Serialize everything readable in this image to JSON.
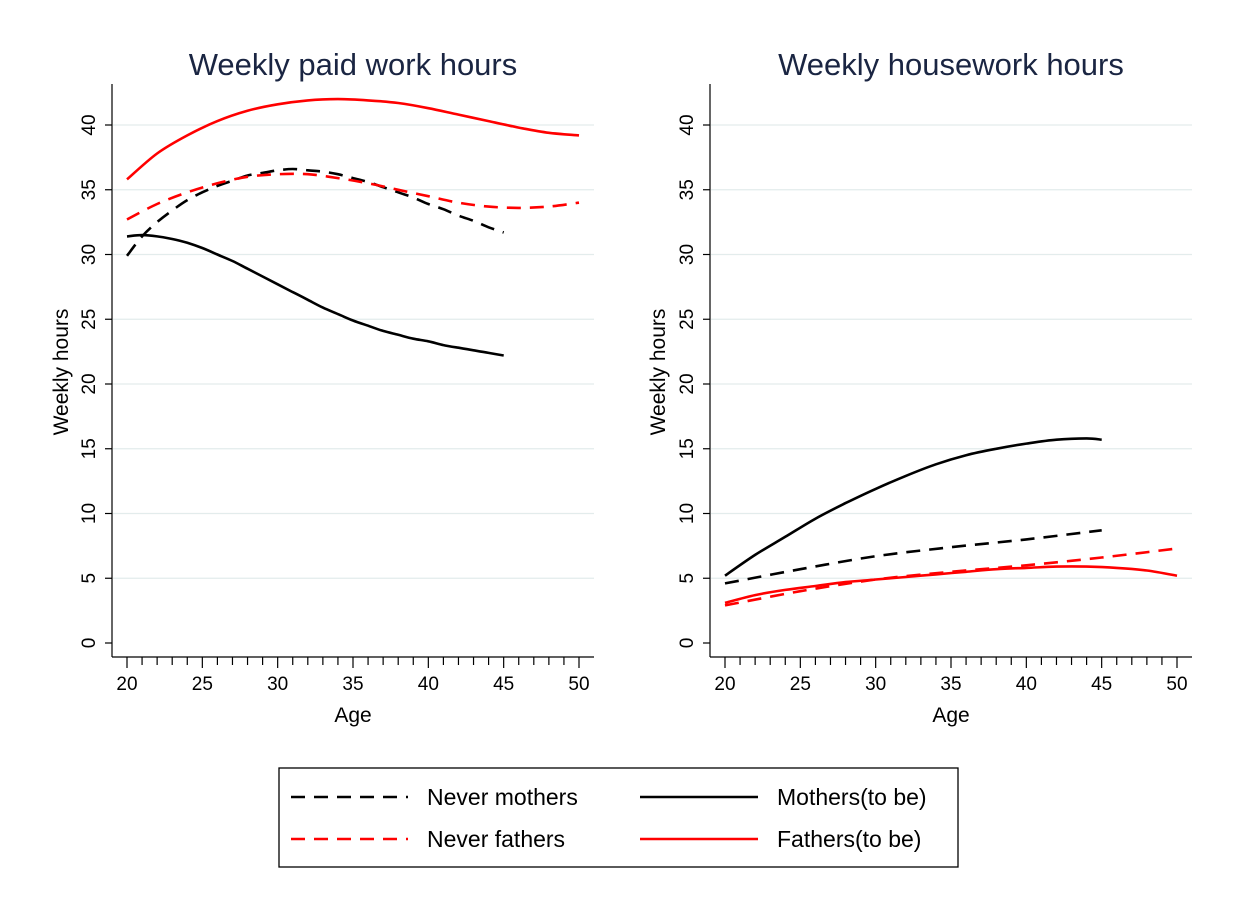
{
  "chart_data": [
    {
      "type": "line",
      "title": "Weekly paid work hours",
      "xlabel": "Age",
      "ylabel": "Weekly hours",
      "xlim": [
        20,
        50
      ],
      "ylim": [
        0,
        40
      ],
      "xticks": [
        20,
        25,
        30,
        35,
        40,
        45,
        50
      ],
      "yticks": [
        0,
        5,
        10,
        15,
        20,
        25,
        30,
        35,
        40
      ],
      "grid": "horizontal",
      "series": [
        {
          "name": "Never mothers",
          "color": "#000000",
          "style": "dashed",
          "x": [
            20,
            21,
            22,
            23,
            24,
            25,
            26,
            27,
            28,
            29,
            30,
            31,
            32,
            33,
            34,
            35,
            36,
            37,
            38,
            39,
            40,
            41,
            42,
            43,
            44,
            45
          ],
          "y": [
            29.9,
            31.4,
            32.5,
            33.4,
            34.2,
            34.8,
            35.3,
            35.7,
            36.1,
            36.3,
            36.5,
            36.6,
            36.5,
            36.4,
            36.2,
            35.9,
            35.6,
            35.2,
            34.8,
            34.4,
            33.9,
            33.5,
            33.0,
            32.6,
            32.1,
            31.7
          ]
        },
        {
          "name": "Never fathers",
          "color": "#ff0000",
          "style": "dashed",
          "x": [
            20,
            22,
            24,
            26,
            28,
            30,
            32,
            34,
            36,
            38,
            40,
            42,
            44,
            46,
            48,
            50
          ],
          "y": [
            32.7,
            33.9,
            34.8,
            35.5,
            36.0,
            36.2,
            36.2,
            35.9,
            35.5,
            35.0,
            34.5,
            34.0,
            33.7,
            33.6,
            33.7,
            34.0
          ]
        },
        {
          "name": "Mothers(to be)",
          "color": "#000000",
          "style": "solid",
          "x": [
            20,
            21,
            22,
            23,
            24,
            25,
            26,
            27,
            28,
            29,
            30,
            31,
            32,
            33,
            34,
            35,
            36,
            37,
            38,
            39,
            40,
            41,
            42,
            43,
            44,
            45
          ],
          "y": [
            31.4,
            31.5,
            31.4,
            31.2,
            30.9,
            30.5,
            30.0,
            29.5,
            28.9,
            28.3,
            27.7,
            27.1,
            26.5,
            25.9,
            25.4,
            24.9,
            24.5,
            24.1,
            23.8,
            23.5,
            23.3,
            23.0,
            22.8,
            22.6,
            22.4,
            22.2
          ]
        },
        {
          "name": "Fathers(to be)",
          "color": "#ff0000",
          "style": "solid",
          "x": [
            20,
            22,
            24,
            26,
            28,
            30,
            32,
            34,
            36,
            38,
            40,
            42,
            44,
            46,
            48,
            50
          ],
          "y": [
            35.8,
            37.8,
            39.2,
            40.3,
            41.1,
            41.6,
            41.9,
            42.0,
            41.9,
            41.7,
            41.3,
            40.8,
            40.3,
            39.8,
            39.4,
            39.2
          ]
        }
      ]
    },
    {
      "type": "line",
      "title": "Weekly housework hours",
      "xlabel": "Age",
      "ylabel": "Weekly hours",
      "xlim": [
        20,
        50
      ],
      "ylim": [
        0,
        40
      ],
      "xticks": [
        20,
        25,
        30,
        35,
        40,
        45,
        50
      ],
      "yticks": [
        0,
        5,
        10,
        15,
        20,
        25,
        30,
        35,
        40
      ],
      "grid": "horizontal",
      "series": [
        {
          "name": "Never mothers",
          "color": "#000000",
          "style": "dashed",
          "x": [
            20,
            25,
            30,
            35,
            40,
            45
          ],
          "y": [
            4.6,
            5.7,
            6.7,
            7.4,
            8.0,
            8.7
          ]
        },
        {
          "name": "Never fathers",
          "color": "#ff0000",
          "style": "dashed",
          "x": [
            20,
            25,
            30,
            35,
            40,
            45,
            50
          ],
          "y": [
            2.9,
            4.0,
            4.9,
            5.5,
            6.0,
            6.6,
            7.3
          ]
        },
        {
          "name": "Mothers(to be)",
          "color": "#000000",
          "style": "solid",
          "x": [
            20,
            22,
            24,
            26,
            28,
            30,
            32,
            34,
            36,
            38,
            40,
            42,
            44,
            45
          ],
          "y": [
            5.2,
            6.8,
            8.2,
            9.6,
            10.8,
            11.9,
            12.9,
            13.8,
            14.5,
            15.0,
            15.4,
            15.7,
            15.8,
            15.7
          ]
        },
        {
          "name": "Fathers(to be)",
          "color": "#ff0000",
          "style": "solid",
          "x": [
            20,
            22,
            24,
            26,
            28,
            30,
            32,
            34,
            36,
            38,
            40,
            42,
            44,
            46,
            48,
            50
          ],
          "y": [
            3.1,
            3.7,
            4.1,
            4.4,
            4.7,
            4.9,
            5.1,
            5.3,
            5.5,
            5.7,
            5.8,
            5.9,
            5.9,
            5.8,
            5.6,
            5.2
          ]
        }
      ]
    }
  ],
  "legend": {
    "placement": "bottom",
    "items": [
      {
        "label": "Never mothers",
        "color": "#000000",
        "style": "dashed"
      },
      {
        "label": "Mothers(to be)",
        "color": "#000000",
        "style": "solid"
      },
      {
        "label": "Never fathers",
        "color": "#ff0000",
        "style": "dashed"
      },
      {
        "label": "Fathers(to be)",
        "color": "#ff0000",
        "style": "solid"
      }
    ]
  }
}
